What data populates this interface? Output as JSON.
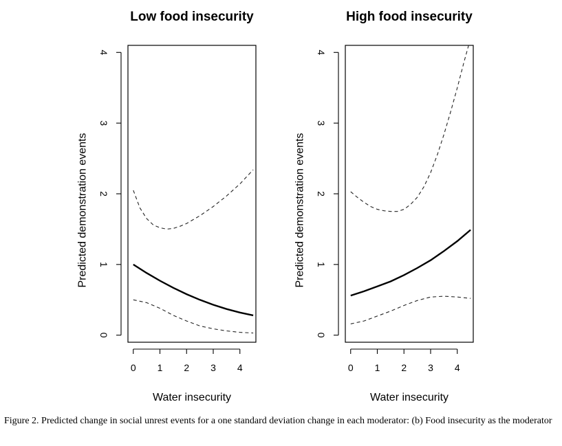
{
  "chart_data": [
    {
      "type": "line",
      "title": "Low food insecurity",
      "xlabel": "Water insecurity",
      "ylabel": "Predicted demonstration events",
      "xlim": [
        -0.2,
        4.6
      ],
      "ylim": [
        -0.1,
        4.1
      ],
      "xticks": [
        0,
        1,
        2,
        3,
        4
      ],
      "yticks": [
        0,
        1,
        2,
        3,
        4
      ],
      "grid": false,
      "series": [
        {
          "role": "estimate",
          "style": "solid",
          "x": [
            0,
            0.5,
            1,
            1.5,
            2,
            2.5,
            3,
            3.5,
            4,
            4.5
          ],
          "y": [
            1.0,
            0.88,
            0.77,
            0.67,
            0.58,
            0.5,
            0.43,
            0.37,
            0.32,
            0.28
          ]
        },
        {
          "role": "upper bound",
          "style": "dashed",
          "x": [
            0,
            0.25,
            0.5,
            0.75,
            1,
            1.25,
            1.5,
            1.75,
            2,
            2.5,
            3,
            3.5,
            4,
            4.5
          ],
          "y": [
            2.05,
            1.8,
            1.65,
            1.56,
            1.52,
            1.5,
            1.51,
            1.54,
            1.58,
            1.69,
            1.82,
            1.97,
            2.14,
            2.34
          ]
        },
        {
          "role": "lower bound",
          "style": "dashed",
          "x": [
            0,
            0.5,
            1,
            1.5,
            2,
            2.5,
            3,
            3.5,
            4,
            4.5
          ],
          "y": [
            0.5,
            0.46,
            0.38,
            0.28,
            0.2,
            0.13,
            0.09,
            0.06,
            0.04,
            0.03
          ]
        }
      ]
    },
    {
      "type": "line",
      "title": "High food insecurity",
      "xlabel": "Water insecurity",
      "ylabel": "Predicted demonstration events",
      "xlim": [
        -0.2,
        4.6
      ],
      "ylim": [
        -0.1,
        4.1
      ],
      "xticks": [
        0,
        1,
        2,
        3,
        4
      ],
      "yticks": [
        0,
        1,
        2,
        3,
        4
      ],
      "grid": false,
      "series": [
        {
          "role": "estimate",
          "style": "solid",
          "x": [
            0,
            0.5,
            1,
            1.5,
            2,
            2.5,
            3,
            3.5,
            4,
            4.5
          ],
          "y": [
            0.56,
            0.62,
            0.69,
            0.76,
            0.85,
            0.95,
            1.06,
            1.19,
            1.33,
            1.49
          ]
        },
        {
          "role": "upper bound",
          "style": "dashed",
          "x": [
            0,
            0.25,
            0.5,
            0.75,
            1,
            1.25,
            1.5,
            1.75,
            2,
            2.25,
            2.5,
            2.75,
            3,
            3.25,
            3.5,
            3.75,
            4,
            4.25,
            4.5
          ],
          "y": [
            2.03,
            1.95,
            1.88,
            1.82,
            1.78,
            1.76,
            1.75,
            1.75,
            1.78,
            1.85,
            1.95,
            2.1,
            2.3,
            2.55,
            2.84,
            3.16,
            3.5,
            3.86,
            4.2
          ]
        },
        {
          "role": "lower bound",
          "style": "dashed",
          "x": [
            0,
            0.5,
            1,
            1.5,
            2,
            2.5,
            3,
            3.5,
            4,
            4.5
          ],
          "y": [
            0.16,
            0.2,
            0.27,
            0.34,
            0.42,
            0.49,
            0.54,
            0.55,
            0.54,
            0.52
          ]
        }
      ]
    }
  ],
  "caption": "Figure 2. Predicted change in social unrest events for a one standard deviation change in each moderator: (b) Food insecurity as the moderator"
}
